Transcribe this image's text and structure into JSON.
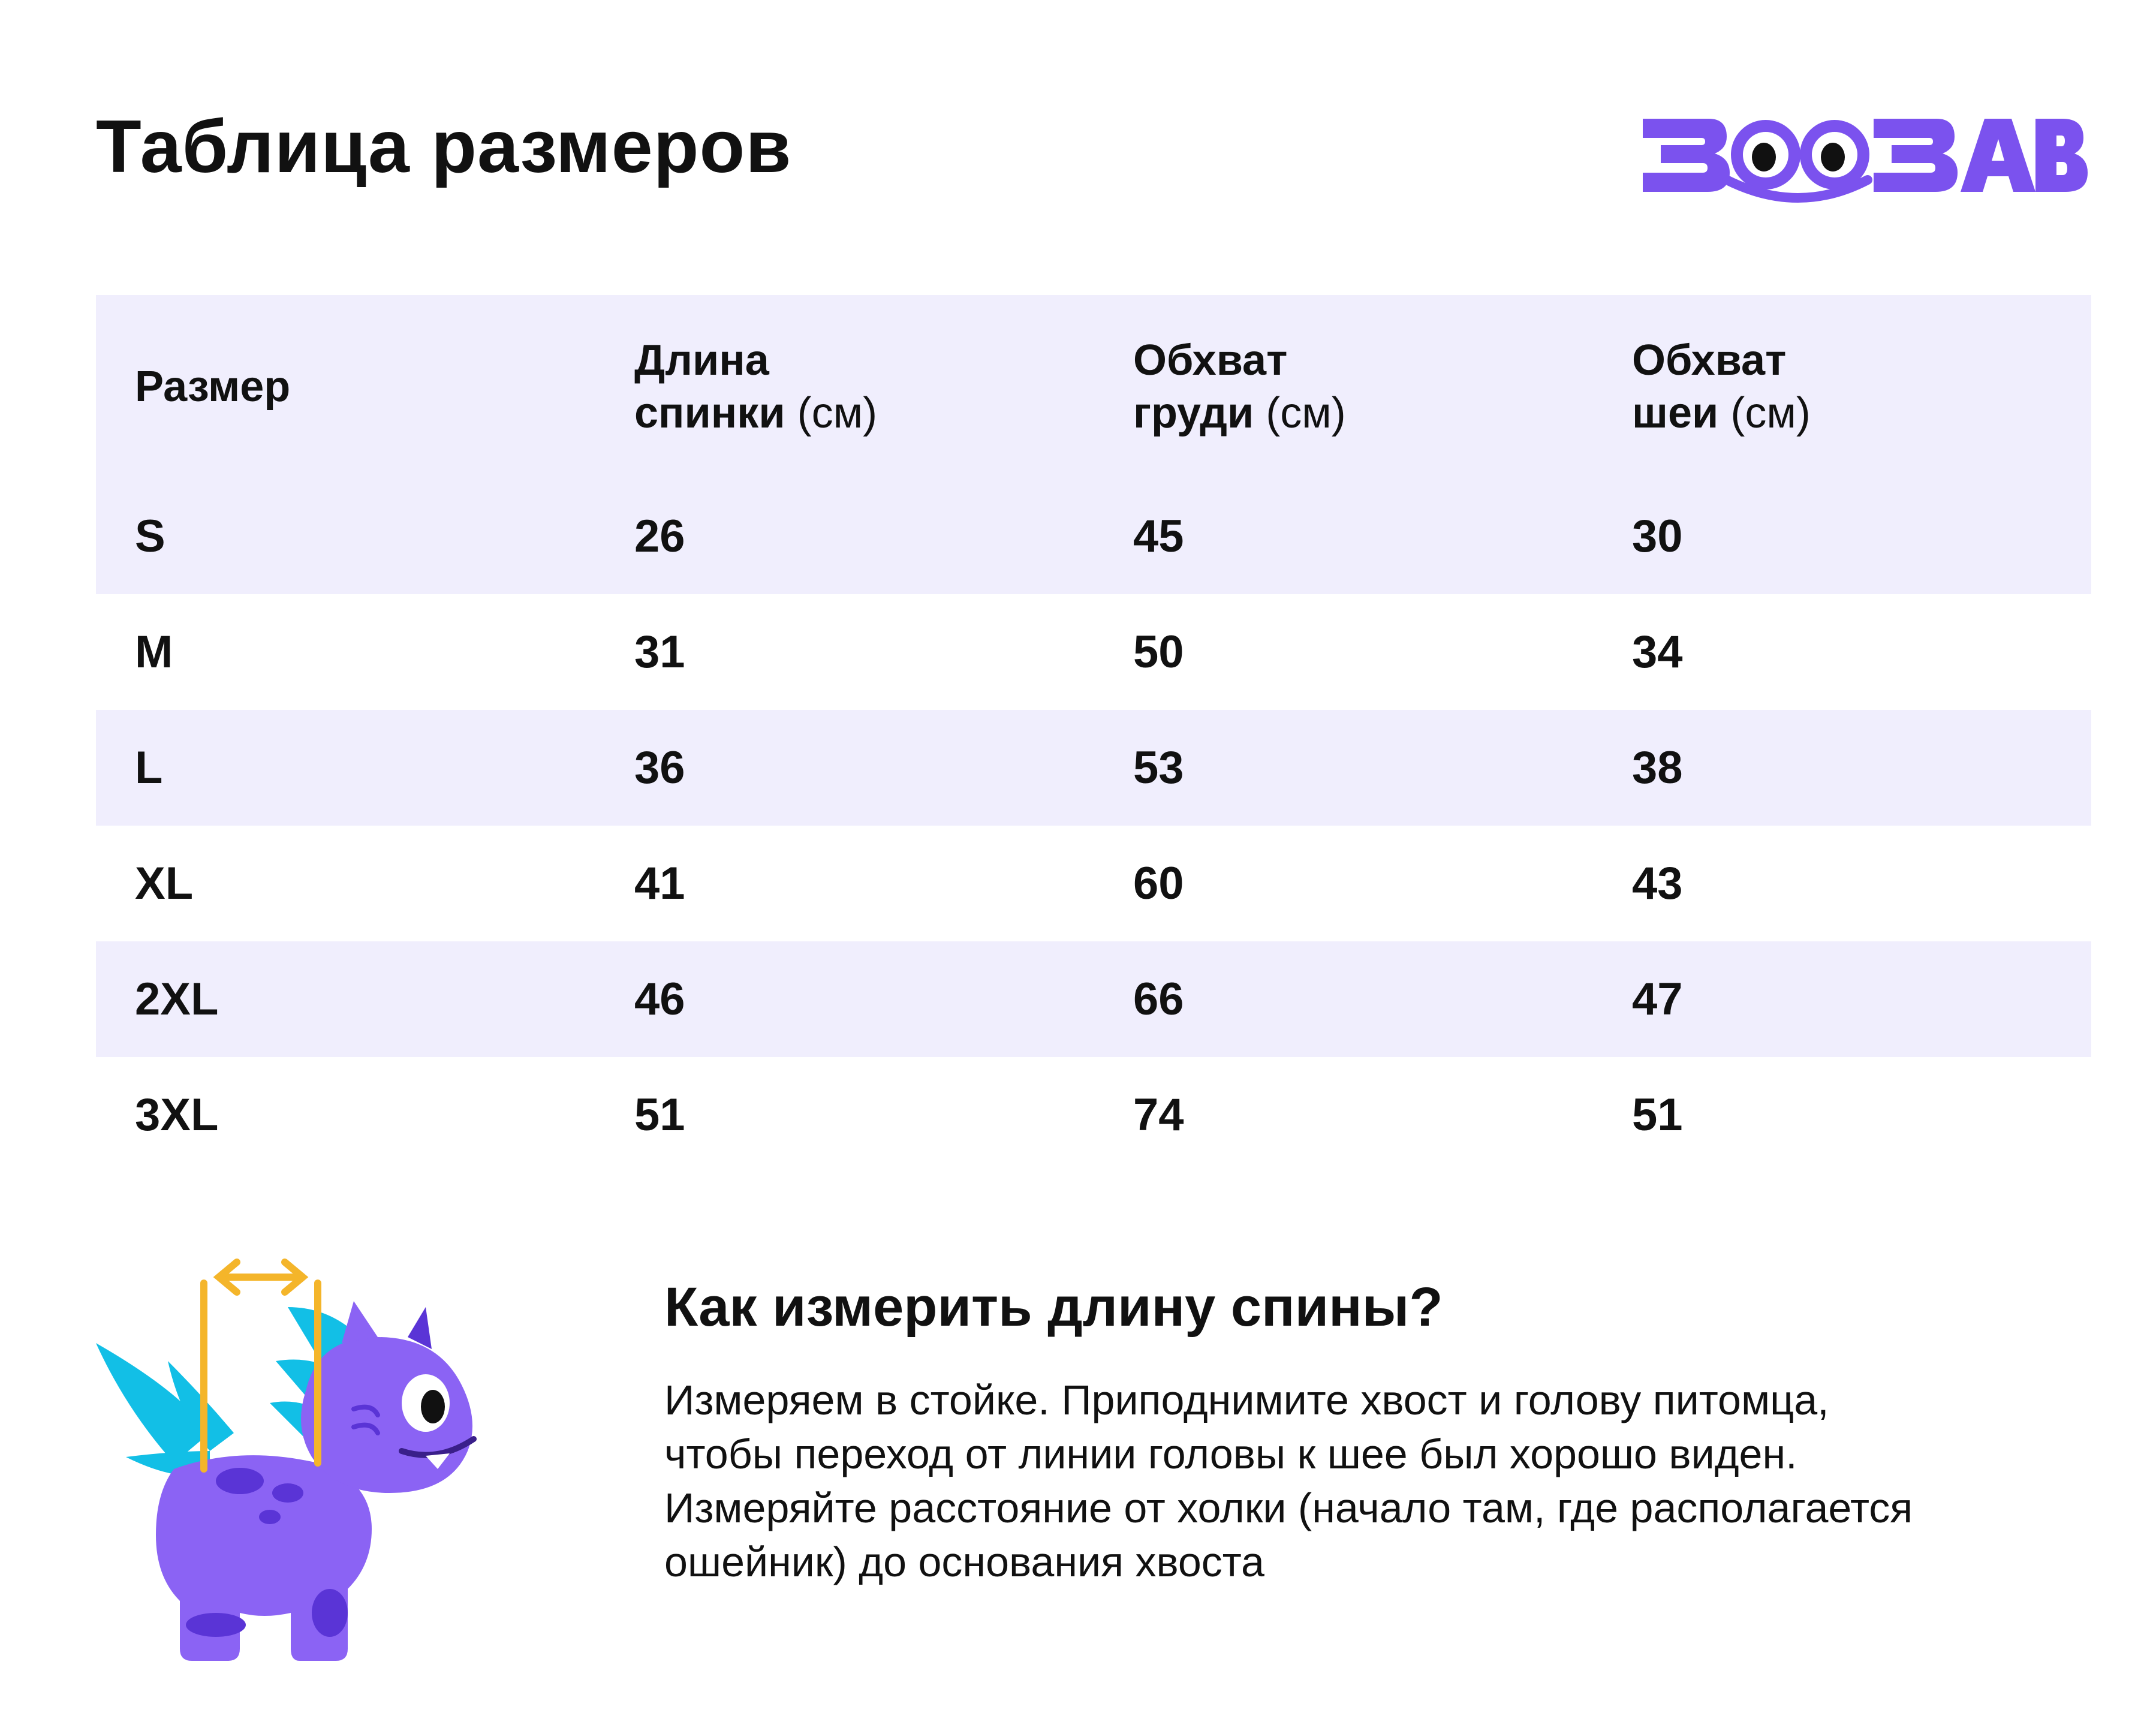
{
  "page": {
    "title": "Таблица размеров"
  },
  "brand": {
    "logo_text": "ЗООЗАВР",
    "accent_color": "#7b52ee",
    "row_shade_color": "#f0eefd",
    "measure_color": "#f4b52a",
    "spike_color": "#12bfe6"
  },
  "table": {
    "headers": [
      {
        "main": "Размер",
        "line2": "",
        "unit": ""
      },
      {
        "main": "Длина",
        "line2": "спинки",
        "unit": "(см)"
      },
      {
        "main": "Обхват",
        "line2": "груди",
        "unit": "(см)"
      },
      {
        "main": "Обхват",
        "line2": "шеи",
        "unit": "(см)"
      }
    ],
    "rows": [
      [
        "S",
        "26",
        "45",
        "30"
      ],
      [
        "M",
        "31",
        "50",
        "34"
      ],
      [
        "L",
        "36",
        "53",
        "38"
      ],
      [
        "XL",
        "41",
        "60",
        "43"
      ],
      [
        "2XL",
        "46",
        "66",
        "47"
      ],
      [
        "3XL",
        "51",
        "74",
        "51"
      ]
    ]
  },
  "howto": {
    "title": "Как измерить длину спины?",
    "text": "Измеряем в стойке. Приподнимите хвост и голову питомца, чтобы переход от линии головы к шее был хорошо виден. Измеряйте расстояние от холки (начало там, где располагается ошейник) до основания хвоста"
  }
}
